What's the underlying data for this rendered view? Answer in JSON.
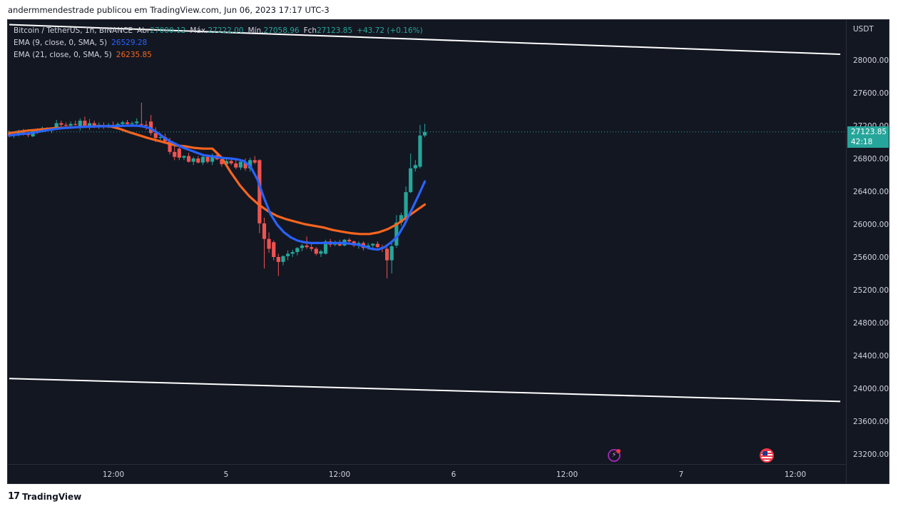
{
  "caption": "andermmendestrade publicou em TradingView.com, Jun 06, 2023 17:17 UTC-3",
  "legend": {
    "symbol": "Bitcoin / TetherUS, 1h, BINANCE",
    "open_label": "Abr",
    "open": "27080.12",
    "high_label": "Máx.",
    "high": "27222.00",
    "low_label": "Mín.",
    "low": "27058.96",
    "close_label": "Fch",
    "close": "27123.85",
    "change": "+43.72 (+0.16%)",
    "ema9_label": "EMA (9, close, 0, SMA, 5)",
    "ema9_value": "26529.28",
    "ema21_label": "EMA (21, close, 0, SMA, 5)",
    "ema21_value": "26235.85"
  },
  "price_axis": {
    "currency": "USDT",
    "last_price": "27123.85",
    "countdown": "42:18"
  },
  "footer": {
    "brand": "TradingView"
  },
  "colors": {
    "background": "#131722",
    "up": "#26a69a",
    "down": "#ef5350",
    "ema9": "#2962ff",
    "ema21": "#f7651f",
    "trendline": "#ffffff",
    "axis_text": "#d1d4dc"
  },
  "chart_data": {
    "type": "candlestick",
    "symbol": "BTCUSDT",
    "timeframe": "1h",
    "y_range": [
      23050,
      28550
    ],
    "y_ticks": [
      23200,
      23600,
      24000,
      24400,
      24800,
      25200,
      25600,
      26000,
      26400,
      26800,
      27200,
      27600,
      28000
    ],
    "x_ticks": [
      "12:00",
      "5",
      "12:00",
      "6",
      "12:00",
      "7",
      "12:00"
    ],
    "bar_spacing_px": 6.62,
    "x_start_index": 0.0,
    "candles": [
      {
        "o": 27100,
        "h": 27140,
        "l": 27060,
        "c": 27080
      },
      {
        "o": 27080,
        "h": 27120,
        "l": 27050,
        "c": 27090
      },
      {
        "o": 27090,
        "h": 27150,
        "l": 27070,
        "c": 27120
      },
      {
        "o": 27120,
        "h": 27160,
        "l": 27080,
        "c": 27100
      },
      {
        "o": 27100,
        "h": 27140,
        "l": 27060,
        "c": 27085
      },
      {
        "o": 27070,
        "h": 27150,
        "l": 27060,
        "c": 27150
      },
      {
        "o": 27150,
        "h": 27170,
        "l": 27100,
        "c": 27130
      },
      {
        "o": 27130,
        "h": 27190,
        "l": 27120,
        "c": 27170
      },
      {
        "o": 27170,
        "h": 27180,
        "l": 27130,
        "c": 27150
      },
      {
        "o": 27150,
        "h": 27170,
        "l": 27110,
        "c": 27160
      },
      {
        "o": 27160,
        "h": 27270,
        "l": 27150,
        "c": 27230
      },
      {
        "o": 27230,
        "h": 27260,
        "l": 27190,
        "c": 27210
      },
      {
        "o": 27210,
        "h": 27240,
        "l": 27180,
        "c": 27200
      },
      {
        "o": 27200,
        "h": 27250,
        "l": 27190,
        "c": 27220
      },
      {
        "o": 27220,
        "h": 27260,
        "l": 27200,
        "c": 27210
      },
      {
        "o": 27190,
        "h": 27290,
        "l": 27140,
        "c": 27260
      },
      {
        "o": 27260,
        "h": 27310,
        "l": 27180,
        "c": 27200
      },
      {
        "o": 27200,
        "h": 27280,
        "l": 27150,
        "c": 27230
      },
      {
        "o": 27230,
        "h": 27260,
        "l": 27170,
        "c": 27180
      },
      {
        "o": 27180,
        "h": 27240,
        "l": 27160,
        "c": 27210
      },
      {
        "o": 27200,
        "h": 27240,
        "l": 27160,
        "c": 27190
      },
      {
        "o": 27190,
        "h": 27230,
        "l": 27170,
        "c": 27210
      },
      {
        "o": 27210,
        "h": 27250,
        "l": 27180,
        "c": 27200
      },
      {
        "o": 27200,
        "h": 27240,
        "l": 27170,
        "c": 27220
      },
      {
        "o": 27220,
        "h": 27260,
        "l": 27200,
        "c": 27240
      },
      {
        "o": 27240,
        "h": 27270,
        "l": 27200,
        "c": 27220
      },
      {
        "o": 27220,
        "h": 27250,
        "l": 27190,
        "c": 27230
      },
      {
        "o": 27230,
        "h": 27290,
        "l": 27200,
        "c": 27250
      },
      {
        "o": 27220,
        "h": 27480,
        "l": 27180,
        "c": 27210
      },
      {
        "o": 27210,
        "h": 27260,
        "l": 27150,
        "c": 27200
      },
      {
        "o": 27250,
        "h": 27330,
        "l": 27080,
        "c": 27110
      },
      {
        "o": 27110,
        "h": 27180,
        "l": 27000,
        "c": 27050
      },
      {
        "o": 27050,
        "h": 27110,
        "l": 27000,
        "c": 27060
      },
      {
        "o": 27060,
        "h": 27100,
        "l": 26980,
        "c": 27010
      },
      {
        "o": 27010,
        "h": 27050,
        "l": 26850,
        "c": 26880
      },
      {
        "o": 26880,
        "h": 26950,
        "l": 26780,
        "c": 26820
      },
      {
        "o": 26920,
        "h": 26950,
        "l": 26780,
        "c": 26810
      },
      {
        "o": 26810,
        "h": 26840,
        "l": 26780,
        "c": 26830
      },
      {
        "o": 26830,
        "h": 26870,
        "l": 26750,
        "c": 26760
      },
      {
        "o": 26760,
        "h": 26820,
        "l": 26720,
        "c": 26800
      },
      {
        "o": 26800,
        "h": 26830,
        "l": 26740,
        "c": 26750
      },
      {
        "o": 26750,
        "h": 26830,
        "l": 26720,
        "c": 26820
      },
      {
        "o": 26820,
        "h": 26850,
        "l": 26740,
        "c": 26760
      },
      {
        "o": 26760,
        "h": 26860,
        "l": 26720,
        "c": 26840
      },
      {
        "o": 26840,
        "h": 26870,
        "l": 26780,
        "c": 26790
      },
      {
        "o": 26790,
        "h": 26820,
        "l": 26700,
        "c": 26730
      },
      {
        "o": 26730,
        "h": 26810,
        "l": 26700,
        "c": 26770
      },
      {
        "o": 26770,
        "h": 26800,
        "l": 26720,
        "c": 26740
      },
      {
        "o": 26740,
        "h": 26790,
        "l": 26670,
        "c": 26690
      },
      {
        "o": 26690,
        "h": 26790,
        "l": 26660,
        "c": 26760
      },
      {
        "o": 26760,
        "h": 26800,
        "l": 26650,
        "c": 26680
      },
      {
        "o": 26680,
        "h": 26810,
        "l": 26640,
        "c": 26780
      },
      {
        "o": 26780,
        "h": 26830,
        "l": 26730,
        "c": 26750
      },
      {
        "o": 26780,
        "h": 26790,
        "l": 25890,
        "c": 26010
      },
      {
        "o": 26010,
        "h": 26080,
        "l": 25460,
        "c": 25820
      },
      {
        "o": 25820,
        "h": 25900,
        "l": 25650,
        "c": 25700
      },
      {
        "o": 25780,
        "h": 25800,
        "l": 25560,
        "c": 25600
      },
      {
        "o": 25600,
        "h": 25640,
        "l": 25370,
        "c": 25540
      },
      {
        "o": 25540,
        "h": 25620,
        "l": 25500,
        "c": 25610
      },
      {
        "o": 25610,
        "h": 25680,
        "l": 25560,
        "c": 25640
      },
      {
        "o": 25640,
        "h": 25690,
        "l": 25600,
        "c": 25660
      },
      {
        "o": 25660,
        "h": 25720,
        "l": 25620,
        "c": 25710
      },
      {
        "o": 25710,
        "h": 25760,
        "l": 25670,
        "c": 25740
      },
      {
        "o": 25740,
        "h": 25850,
        "l": 25700,
        "c": 25720
      },
      {
        "o": 25720,
        "h": 25760,
        "l": 25670,
        "c": 25700
      },
      {
        "o": 25700,
        "h": 25720,
        "l": 25620,
        "c": 25640
      },
      {
        "o": 25640,
        "h": 25690,
        "l": 25600,
        "c": 25670
      },
      {
        "o": 25640,
        "h": 25810,
        "l": 25630,
        "c": 25790
      },
      {
        "o": 25790,
        "h": 25820,
        "l": 25720,
        "c": 25750
      },
      {
        "o": 25750,
        "h": 25800,
        "l": 25730,
        "c": 25780
      },
      {
        "o": 25780,
        "h": 25810,
        "l": 25730,
        "c": 25740
      },
      {
        "o": 25740,
        "h": 25820,
        "l": 25730,
        "c": 25810
      },
      {
        "o": 25810,
        "h": 25830,
        "l": 25750,
        "c": 25790
      },
      {
        "o": 25790,
        "h": 25800,
        "l": 25720,
        "c": 25740
      },
      {
        "o": 25740,
        "h": 25790,
        "l": 25700,
        "c": 25770
      },
      {
        "o": 25770,
        "h": 25790,
        "l": 25680,
        "c": 25710
      },
      {
        "o": 25710,
        "h": 25770,
        "l": 25690,
        "c": 25740
      },
      {
        "o": 25740,
        "h": 25770,
        "l": 25700,
        "c": 25760
      },
      {
        "o": 25760,
        "h": 25790,
        "l": 25710,
        "c": 25720
      },
      {
        "o": 25720,
        "h": 25750,
        "l": 25660,
        "c": 25700
      },
      {
        "o": 25700,
        "h": 25720,
        "l": 25340,
        "c": 25560
      },
      {
        "o": 25560,
        "h": 25780,
        "l": 25400,
        "c": 25730
      },
      {
        "o": 25740,
        "h": 26110,
        "l": 25710,
        "c": 26020
      },
      {
        "o": 26020,
        "h": 26140,
        "l": 25980,
        "c": 26110
      },
      {
        "o": 26060,
        "h": 26460,
        "l": 26030,
        "c": 26390
      },
      {
        "o": 26390,
        "h": 26860,
        "l": 26380,
        "c": 26680
      },
      {
        "o": 26680,
        "h": 26780,
        "l": 26640,
        "c": 26720
      },
      {
        "o": 26700,
        "h": 27210,
        "l": 26680,
        "c": 27080
      },
      {
        "o": 27080,
        "h": 27222,
        "l": 27058.96,
        "c": 27123.85
      }
    ],
    "ema9": {
      "name": "EMA (9, close, 0, SMA, 5)",
      "values": [
        27080,
        27090,
        27100,
        27108,
        27120,
        27135,
        27150,
        27160,
        27170,
        27175,
        27180,
        27185,
        27188,
        27190,
        27192,
        27194,
        27196,
        27198,
        27200,
        27200,
        27190,
        27170,
        27120,
        27060,
        27010,
        26970,
        26930,
        26900,
        26870,
        26840,
        26830,
        26815,
        26805,
        26800,
        26790,
        26770,
        26700,
        26550,
        26320,
        26120,
        25990,
        25900,
        25840,
        25800,
        25780,
        25770,
        25770,
        25770,
        25770,
        25770,
        25770,
        25760,
        25750,
        25730,
        25700,
        25690,
        25720,
        25780,
        25860,
        26000,
        26170,
        26340,
        26520
      ]
    },
    "ema21": {
      "name": "EMA (21, close, 0, SMA, 5)",
      "values": [
        27110,
        27125,
        27140,
        27150,
        27160,
        27170,
        27175,
        27180,
        27185,
        27190,
        27195,
        27190,
        27160,
        27120,
        27085,
        27050,
        27020,
        26990,
        26960,
        26950,
        26930,
        26920,
        26920,
        26810,
        26630,
        26470,
        26340,
        26240,
        26160,
        26100,
        26060,
        26030,
        26000,
        25980,
        25960,
        25930,
        25910,
        25890,
        25880,
        25880,
        25900,
        25940,
        26000,
        26080,
        26160,
        26240
      ]
    },
    "trendlines": [
      {
        "name": "upper",
        "from": [
          0,
          28430
        ],
        "to": [
          176,
          28070
        ]
      },
      {
        "name": "lower",
        "from": [
          0,
          24120
        ],
        "to": [
          176,
          23840
        ]
      }
    ],
    "last_price": 27123.85
  }
}
